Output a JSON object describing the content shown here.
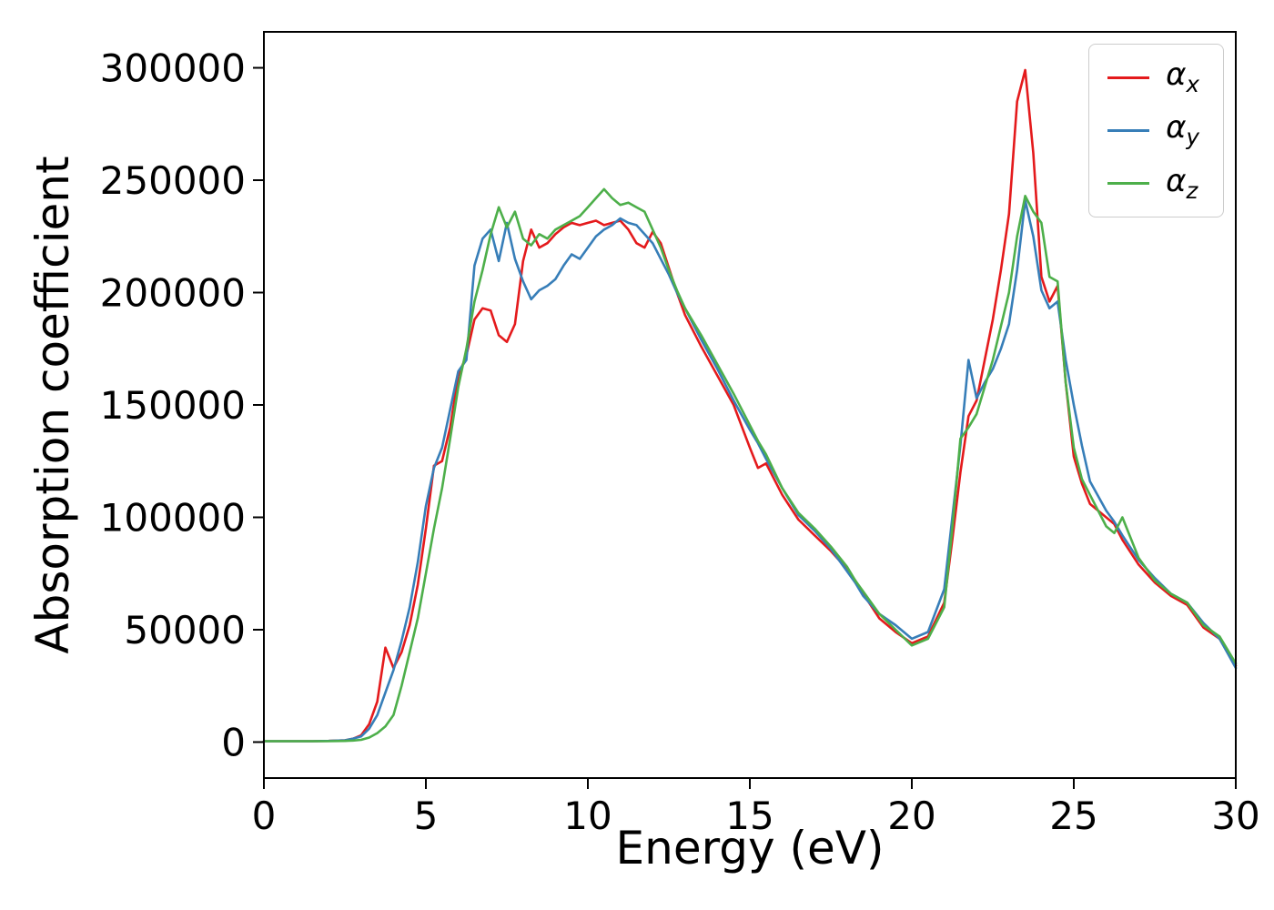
{
  "figure": {
    "background": "#ffffff"
  },
  "chart_data": {
    "type": "line",
    "title": "",
    "xlabel": "Energy (eV)",
    "ylabel": "Absorption coefficient",
    "xlim": [
      0,
      30
    ],
    "ylim": [
      -16000,
      316000
    ],
    "x_ticks": [
      0,
      5,
      10,
      15,
      20,
      25,
      30
    ],
    "y_ticks": [
      0,
      50000,
      100000,
      150000,
      200000,
      250000,
      300000
    ],
    "grid": false,
    "legend_position": "upper right",
    "x": [
      0,
      0.5,
      1,
      1.5,
      2,
      2.5,
      2.75,
      3,
      3.25,
      3.5,
      3.75,
      4,
      4.25,
      4.5,
      4.75,
      5,
      5.25,
      5.5,
      5.75,
      6,
      6.25,
      6.5,
      6.75,
      7,
      7.25,
      7.5,
      7.75,
      8,
      8.25,
      8.5,
      8.75,
      9,
      9.25,
      9.5,
      9.75,
      10,
      10.25,
      10.5,
      10.75,
      11,
      11.25,
      11.5,
      11.75,
      12,
      12.25,
      12.5,
      12.75,
      13,
      13.5,
      14,
      14.5,
      15,
      15.25,
      15.5,
      16,
      16.5,
      17,
      17.5,
      18,
      18.25,
      18.5,
      19,
      19.5,
      20,
      20.5,
      21,
      21.25,
      21.5,
      21.75,
      22,
      22.25,
      22.5,
      22.75,
      23,
      23.25,
      23.5,
      23.75,
      24,
      24.25,
      24.5,
      24.75,
      25,
      25.25,
      25.5,
      26,
      26.25,
      26.5,
      27,
      27.5,
      28,
      28.5,
      29,
      29.5,
      30
    ],
    "series": [
      {
        "name": "alpha_x",
        "symbol": "α",
        "subscript": "x",
        "color": "#e41a1c",
        "values": [
          400,
          400,
          400,
          400,
          500,
          800,
          1500,
          3000,
          8000,
          18000,
          42000,
          33000,
          40000,
          52000,
          70000,
          95000,
          123000,
          125000,
          140000,
          163000,
          172000,
          188000,
          193000,
          192000,
          181000,
          178000,
          186000,
          214000,
          228000,
          220000,
          222000,
          226000,
          229000,
          231000,
          230000,
          231000,
          232000,
          230000,
          231000,
          232000,
          228000,
          222000,
          220000,
          227000,
          222000,
          211000,
          200000,
          190000,
          176000,
          163000,
          150000,
          131000,
          122000,
          124000,
          110000,
          99000,
          92000,
          85000,
          77000,
          72000,
          66000,
          55000,
          49000,
          44000,
          47000,
          62000,
          90000,
          120000,
          145000,
          152000,
          170000,
          188000,
          210000,
          235000,
          285000,
          299000,
          262000,
          207000,
          196000,
          203000,
          160000,
          127000,
          115000,
          106000,
          100000,
          97000,
          90000,
          79000,
          71000,
          65000,
          61000,
          51000,
          46000,
          34000
        ]
      },
      {
        "name": "alpha_y",
        "symbol": "α",
        "subscript": "y",
        "color": "#377eb8",
        "values": [
          400,
          400,
          400,
          400,
          500,
          800,
          1500,
          2500,
          6000,
          12000,
          22000,
          32000,
          45000,
          60000,
          80000,
          105000,
          122000,
          131000,
          148000,
          165000,
          170000,
          212000,
          224000,
          228000,
          214000,
          231000,
          215000,
          205000,
          197000,
          201000,
          203000,
          206000,
          212000,
          217000,
          215000,
          220000,
          225000,
          228000,
          230000,
          233000,
          231000,
          230000,
          226000,
          222000,
          215000,
          208000,
          200000,
          193000,
          179000,
          166000,
          152000,
          139000,
          133000,
          126000,
          113000,
          101000,
          94000,
          86000,
          76000,
          71000,
          65000,
          57000,
          52000,
          46000,
          49000,
          68000,
          100000,
          132000,
          170000,
          153000,
          160000,
          166000,
          175000,
          186000,
          210000,
          241000,
          225000,
          201000,
          193000,
          196000,
          170000,
          150000,
          132000,
          116000,
          103000,
          98000,
          92000,
          81000,
          73000,
          66000,
          62000,
          53000,
          46000,
          33000
        ]
      },
      {
        "name": "alpha_z",
        "symbol": "α",
        "subscript": "z",
        "color": "#4daf4a",
        "values": [
          400,
          400,
          400,
          400,
          400,
          500,
          700,
          1000,
          2000,
          4000,
          7000,
          12000,
          25000,
          40000,
          55000,
          75000,
          95000,
          113000,
          135000,
          158000,
          175000,
          196000,
          210000,
          226000,
          238000,
          229000,
          236000,
          224000,
          221000,
          226000,
          224000,
          228000,
          230000,
          232000,
          234000,
          238000,
          242000,
          246000,
          242000,
          239000,
          240000,
          238000,
          236000,
          228000,
          220000,
          210000,
          201000,
          193000,
          181000,
          168000,
          155000,
          141000,
          134000,
          128000,
          113000,
          102000,
          95000,
          87000,
          78000,
          72000,
          67000,
          57000,
          50000,
          43000,
          46000,
          60000,
          95000,
          135000,
          140000,
          146000,
          158000,
          170000,
          185000,
          200000,
          225000,
          243000,
          236000,
          231000,
          207000,
          205000,
          160000,
          131000,
          117000,
          110000,
          96000,
          93000,
          100000,
          82000,
          72000,
          66000,
          62000,
          52000,
          47000,
          35000
        ]
      }
    ]
  }
}
